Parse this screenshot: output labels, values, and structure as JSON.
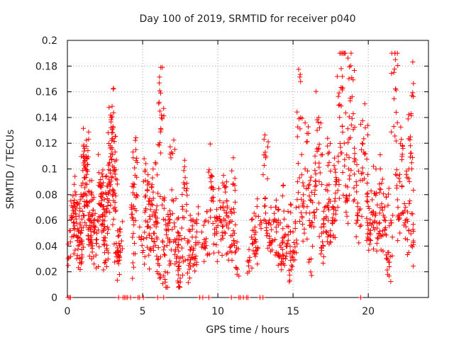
{
  "chart_data": {
    "type": "scatter",
    "title": "Day 100 of 2019, SRMTID for receiver p040",
    "xlabel": "GPS time / hours",
    "ylabel": "SRMTID / TECUs",
    "xlim": [
      0,
      24
    ],
    "ylim": [
      0,
      0.2
    ],
    "xticks": [
      0,
      5,
      10,
      15,
      20
    ],
    "xtick_labels": [
      "0",
      "5",
      "10",
      "15",
      "20"
    ],
    "yticks": [
      0,
      0.02,
      0.04,
      0.06,
      0.08,
      0.1,
      0.12,
      0.14,
      0.16,
      0.18,
      0.2
    ],
    "ytick_labels": [
      "0",
      "0.02",
      "0.04",
      "0.06",
      "0.08",
      "0.1",
      "0.12",
      "0.14",
      "0.16",
      "0.18",
      "0.2"
    ],
    "grid": true,
    "marker": "+",
    "color": "#ff0000",
    "series": [
      {
        "name": "SRMTID",
        "points": [
          [
            0.05,
            0.0
          ],
          [
            0.1,
            0.031
          ],
          [
            0.15,
            0.0
          ],
          [
            0.2,
            0.0
          ],
          [
            0.3,
            0.062
          ],
          [
            0.35,
            0.07
          ],
          [
            0.4,
            0.058
          ],
          [
            0.45,
            0.088
          ],
          [
            0.5,
            0.053
          ],
          [
            0.55,
            0.065
          ],
          [
            0.6,
            0.048
          ],
          [
            0.7,
            0.073
          ],
          [
            0.8,
            0.041
          ],
          [
            0.85,
            0.058
          ],
          [
            0.9,
            0.03
          ],
          [
            0.95,
            0.052
          ],
          [
            1.0,
            0.067
          ],
          [
            1.05,
            0.079
          ],
          [
            1.1,
            0.103
          ],
          [
            1.15,
            0.093
          ],
          [
            1.2,
            0.102
          ],
          [
            1.25,
            0.11
          ],
          [
            1.3,
            0.088
          ],
          [
            1.35,
            0.071
          ],
          [
            1.4,
            0.064
          ],
          [
            1.5,
            0.056
          ],
          [
            1.55,
            0.047
          ],
          [
            1.6,
            0.082
          ],
          [
            1.7,
            0.068
          ],
          [
            1.8,
            0.051
          ],
          [
            1.9,
            0.033
          ],
          [
            2.0,
            0.06
          ],
          [
            2.1,
            0.073
          ],
          [
            2.2,
            0.086
          ],
          [
            2.3,
            0.081
          ],
          [
            2.35,
            0.063
          ],
          [
            2.4,
            0.052
          ],
          [
            2.5,
            0.044
          ],
          [
            2.55,
            0.029
          ],
          [
            2.6,
            0.067
          ],
          [
            2.7,
            0.074
          ],
          [
            2.75,
            0.092
          ],
          [
            2.8,
            0.105
          ],
          [
            2.85,
            0.118
          ],
          [
            2.9,
            0.132
          ],
          [
            2.95,
            0.122
          ],
          [
            3.0,
            0.111
          ],
          [
            3.05,
            0.132
          ],
          [
            3.1,
            0.098
          ],
          [
            3.15,
            0.081
          ],
          [
            3.2,
            0.067
          ],
          [
            3.25,
            0.042
          ],
          [
            3.3,
            0.035
          ],
          [
            3.35,
            0.028
          ],
          [
            3.4,
            0.0
          ],
          [
            3.5,
            0.051
          ],
          [
            3.6,
            0.044
          ],
          [
            3.7,
            0.0
          ],
          [
            3.8,
            0.0
          ],
          [
            3.9,
            0.0
          ],
          [
            4.0,
            0.0
          ],
          [
            4.2,
            0.0
          ],
          [
            4.3,
            0.062
          ],
          [
            4.35,
            0.027
          ],
          [
            4.4,
            0.071
          ],
          [
            4.45,
            0.088
          ],
          [
            4.5,
            0.095
          ],
          [
            4.55,
            0.115
          ],
          [
            4.6,
            0.08
          ],
          [
            4.7,
            0.0
          ],
          [
            4.8,
            0.0
          ],
          [
            4.9,
            0.045
          ],
          [
            5.0,
            0.035
          ],
          [
            5.05,
            0.0
          ],
          [
            5.1,
            0.108
          ],
          [
            5.2,
            0.068
          ],
          [
            5.3,
            0.055
          ],
          [
            5.35,
            0.09
          ],
          [
            5.4,
            0.075
          ],
          [
            5.5,
            0.061
          ],
          [
            5.55,
            0.038
          ],
          [
            5.6,
            0.046
          ],
          [
            5.65,
            0.072
          ],
          [
            5.7,
            0.082
          ],
          [
            5.8,
            0.064
          ],
          [
            5.85,
            0.105
          ],
          [
            5.9,
            0.055
          ],
          [
            6.0,
            0.0
          ],
          [
            6.05,
            0.03
          ],
          [
            6.1,
            0.025
          ],
          [
            6.15,
            0.145
          ],
          [
            6.2,
            0.159
          ],
          [
            6.25,
            0.14
          ],
          [
            6.3,
            0.072
          ],
          [
            6.35,
            0.043
          ],
          [
            6.4,
            0.0
          ],
          [
            6.5,
            0.02
          ],
          [
            6.55,
            0.008
          ],
          [
            6.6,
            0.052
          ],
          [
            6.7,
            0.063
          ],
          [
            6.8,
            0.045
          ],
          [
            6.9,
            0.037
          ],
          [
            7.0,
            0.112
          ],
          [
            7.05,
            0.075
          ],
          [
            7.1,
            0.058
          ],
          [
            7.2,
            0.043
          ],
          [
            7.3,
            0.032
          ],
          [
            7.35,
            0.021
          ],
          [
            7.4,
            0.048
          ],
          [
            7.5,
            0.015
          ],
          [
            7.6,
            0.054
          ],
          [
            7.7,
            0.028
          ],
          [
            7.75,
            0.062
          ],
          [
            7.8,
            0.088
          ],
          [
            7.9,
            0.083
          ],
          [
            8.0,
            0.044
          ],
          [
            8.1,
            0.022
          ],
          [
            8.2,
            0.06
          ],
          [
            8.3,
            0.047
          ],
          [
            8.4,
            0.038
          ],
          [
            8.5,
            0.03
          ],
          [
            8.6,
            0.051
          ],
          [
            8.7,
            0.065
          ],
          [
            8.8,
            0.0
          ],
          [
            9.0,
            0.0
          ],
          [
            9.1,
            0.045
          ],
          [
            9.2,
            0.06
          ],
          [
            9.3,
            0.033
          ],
          [
            9.4,
            0.0
          ],
          [
            9.5,
            0.068
          ],
          [
            9.55,
            0.09
          ],
          [
            9.6,
            0.094
          ],
          [
            9.7,
            0.078
          ],
          [
            9.8,
            0.05
          ],
          [
            9.9,
            0.041
          ],
          [
            10.0,
            0.056
          ],
          [
            10.1,
            0.063
          ],
          [
            10.2,
            0.07
          ],
          [
            10.3,
            0.048
          ],
          [
            10.4,
            0.061
          ],
          [
            10.5,
            0.082
          ],
          [
            10.55,
            0.086
          ],
          [
            10.6,
            0.075
          ],
          [
            10.7,
            0.054
          ],
          [
            10.8,
            0.039
          ],
          [
            10.9,
            0.0
          ],
          [
            11.0,
            0.088
          ],
          [
            11.05,
            0.069
          ],
          [
            11.1,
            0.05
          ],
          [
            11.2,
            0.036
          ],
          [
            11.3,
            0.022
          ],
          [
            11.4,
            0.0
          ],
          [
            11.5,
            0.0
          ],
          [
            11.7,
            0.0
          ],
          [
            11.9,
            0.0
          ],
          [
            12.0,
            0.0
          ],
          [
            12.1,
            0.029
          ],
          [
            12.3,
            0.061
          ],
          [
            12.4,
            0.052
          ],
          [
            12.5,
            0.045
          ],
          [
            12.6,
            0.037
          ],
          [
            12.7,
            0.063
          ],
          [
            12.8,
            0.0
          ],
          [
            12.9,
            0.058
          ],
          [
            13.0,
            0.0
          ],
          [
            13.1,
            0.071
          ],
          [
            13.15,
            0.113
          ],
          [
            13.2,
            0.11
          ],
          [
            13.3,
            0.05
          ],
          [
            13.4,
            0.058
          ],
          [
            13.5,
            0.043
          ],
          [
            13.6,
            0.037
          ],
          [
            13.7,
            0.059
          ],
          [
            13.8,
            0.045
          ],
          [
            13.9,
            0.051
          ],
          [
            14.0,
            0.068
          ],
          [
            14.1,
            0.032
          ],
          [
            14.2,
            0.039
          ],
          [
            14.3,
            0.079
          ],
          [
            14.4,
            0.047
          ],
          [
            14.5,
            0.03
          ],
          [
            14.6,
            0.04
          ],
          [
            14.7,
            0.055
          ],
          [
            14.8,
            0.034
          ],
          [
            14.9,
            0.025
          ],
          [
            15.0,
            0.051
          ],
          [
            15.1,
            0.035
          ],
          [
            15.2,
            0.07
          ],
          [
            15.3,
            0.09
          ],
          [
            15.4,
            0.139
          ],
          [
            15.5,
            0.168
          ],
          [
            15.6,
            0.063
          ],
          [
            15.7,
            0.075
          ],
          [
            15.8,
            0.1
          ],
          [
            15.9,
            0.121
          ],
          [
            16.0,
            0.085
          ],
          [
            16.1,
            0.056
          ],
          [
            16.2,
            0.03
          ],
          [
            16.3,
            0.074
          ],
          [
            16.4,
            0.066
          ],
          [
            16.5,
            0.091
          ],
          [
            16.6,
            0.13
          ],
          [
            16.7,
            0.14
          ],
          [
            16.8,
            0.097
          ],
          [
            16.9,
            0.05
          ],
          [
            17.0,
            0.04
          ],
          [
            17.1,
            0.07
          ],
          [
            17.2,
            0.063
          ],
          [
            17.3,
            0.083
          ],
          [
            17.4,
            0.105
          ],
          [
            17.5,
            0.048
          ],
          [
            17.6,
            0.058
          ],
          [
            17.7,
            0.065
          ],
          [
            17.8,
            0.077
          ],
          [
            17.9,
            0.09
          ],
          [
            18.0,
            0.11
          ],
          [
            18.1,
            0.15
          ],
          [
            18.2,
            0.178
          ],
          [
            18.3,
            0.163
          ],
          [
            18.4,
            0.12
          ],
          [
            18.5,
            0.087
          ],
          [
            18.6,
            0.075
          ],
          [
            18.7,
            0.1
          ],
          [
            18.8,
            0.155
          ],
          [
            18.9,
            0.171
          ],
          [
            19.0,
            0.143
          ],
          [
            19.1,
            0.112
          ],
          [
            19.2,
            0.09
          ],
          [
            19.3,
            0.06
          ],
          [
            19.4,
            0.068
          ],
          [
            19.5,
            0.0
          ],
          [
            19.6,
            0.12
          ],
          [
            19.7,
            0.113
          ],
          [
            19.8,
            0.132
          ],
          [
            19.9,
            0.075
          ],
          [
            20.0,
            0.053
          ],
          [
            20.1,
            0.045
          ],
          [
            20.2,
            0.066
          ],
          [
            20.3,
            0.058
          ],
          [
            20.4,
            0.081
          ],
          [
            20.5,
            0.064
          ],
          [
            20.6,
            0.072
          ],
          [
            20.7,
            0.05
          ],
          [
            20.8,
            0.1
          ],
          [
            20.9,
            0.07
          ],
          [
            21.0,
            0.064
          ],
          [
            21.1,
            0.053
          ],
          [
            21.2,
            0.078
          ],
          [
            21.3,
            0.035
          ],
          [
            21.4,
            0.024
          ],
          [
            21.5,
            0.06
          ],
          [
            21.6,
            0.047
          ],
          [
            21.7,
            0.175
          ],
          [
            21.8,
            0.185
          ],
          [
            21.85,
            0.144
          ],
          [
            21.9,
            0.087
          ],
          [
            22.0,
            0.064
          ],
          [
            22.1,
            0.09
          ],
          [
            22.2,
            0.123
          ],
          [
            22.3,
            0.116
          ],
          [
            22.4,
            0.073
          ],
          [
            22.5,
            0.055
          ],
          [
            22.6,
            0.045
          ],
          [
            22.7,
            0.1
          ],
          [
            22.8,
            0.125
          ],
          [
            22.85,
            0.143
          ],
          [
            22.9,
            0.157
          ],
          [
            22.95,
            0.065
          ],
          [
            23.0,
            0.044
          ]
        ]
      }
    ]
  }
}
